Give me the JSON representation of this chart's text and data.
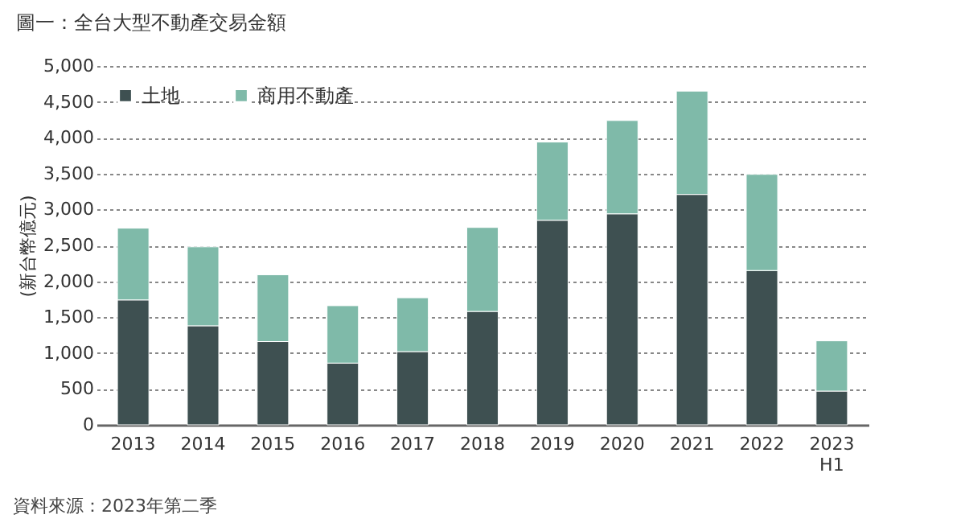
{
  "chart_data": {
    "type": "bar",
    "title": "圖一：全台大型不動產交易金額",
    "ylabel": "(新台幣億元)",
    "stacked": true,
    "legend": "top left",
    "grid": "y",
    "line_style": "dashed",
    "categories": [
      "2013",
      "2014",
      "2015",
      "2016",
      "2017",
      "2018",
      "2019",
      "2020",
      "2021",
      "2022",
      "2023\nH1"
    ],
    "series": [
      {
        "name": "土地",
        "color": "#3e5051",
        "values": [
          1740,
          1380,
          1160,
          860,
          1020,
          1580,
          2850,
          2940,
          3210,
          2150,
          470
        ]
      },
      {
        "name": "商用不動產",
        "color": "#7fbaa9",
        "values": [
          1000,
          1100,
          930,
          800,
          750,
          1170,
          1090,
          1300,
          1440,
          1340,
          700
        ]
      }
    ],
    "ylim": [
      0,
      5000
    ],
    "yticks": [
      0,
      {
        "value": 500,
        "label": "500"
      },
      {
        "value": 1000,
        "label": "1,000"
      },
      {
        "value": 1500,
        "label": "1,500"
      },
      {
        "value": 2000,
        "label": "2,000"
      },
      {
        "value": 2500,
        "label": "2,500"
      },
      {
        "value": 3000,
        "label": "3,000"
      },
      {
        "value": 3500,
        "label": "3,500"
      },
      {
        "value": 4000,
        "label": "4,000"
      },
      {
        "value": 4500,
        "label": "4,500"
      },
      {
        "value": 5000,
        "label": "5,000"
      }
    ],
    "annotations": [
      "資料來源：2023年第二季"
    ]
  }
}
